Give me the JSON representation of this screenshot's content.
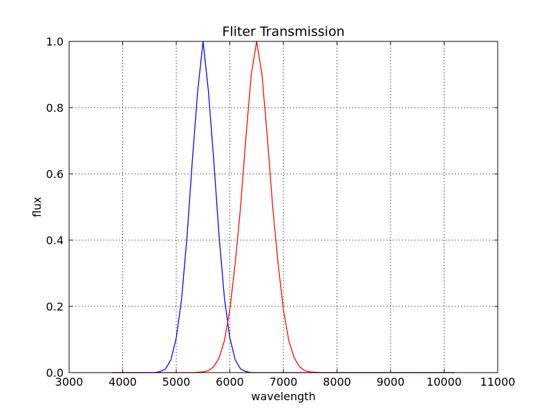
{
  "chart_data": {
    "type": "line",
    "title": "Fliter Transmission",
    "xlabel": "wavelength",
    "ylabel": "flux",
    "xlim": [
      3000,
      11000
    ],
    "ylim": [
      0.0,
      1.0
    ],
    "x_ticks": [
      "3000",
      "4000",
      "5000",
      "6000",
      "7000",
      "8000",
      "9000",
      "10000",
      "11000"
    ],
    "y_ticks": [
      "0.0",
      "0.2",
      "0.4",
      "0.6",
      "0.8",
      "1.0"
    ],
    "grid": true,
    "legend": "none",
    "series": [
      {
        "color": "#0000ff",
        "x": [
          3800,
          4600,
          4700,
          4800,
          4900,
          5000,
          5100,
          5200,
          5300,
          5400,
          5500,
          5600,
          5700,
          5800,
          5900,
          6000,
          6100,
          6200,
          6300,
          6400,
          10200
        ],
        "y": [
          0.0,
          0.0,
          0.003,
          0.011,
          0.039,
          0.105,
          0.223,
          0.41,
          0.64,
          0.85,
          1.0,
          0.85,
          0.64,
          0.41,
          0.223,
          0.105,
          0.039,
          0.011,
          0.003,
          0.0,
          0.0
        ]
      },
      {
        "color": "#ff0000",
        "x": [
          3800,
          5300,
          5500,
          5600,
          5700,
          5800,
          5900,
          6000,
          6100,
          6200,
          6300,
          6400,
          6500,
          6600,
          6700,
          6800,
          6900,
          7000,
          7100,
          7200,
          7300,
          7400,
          7500,
          7700,
          10200
        ],
        "y": [
          0.0,
          0.0,
          0.002,
          0.006,
          0.018,
          0.045,
          0.097,
          0.19,
          0.33,
          0.5,
          0.71,
          0.9,
          1.0,
          0.9,
          0.71,
          0.5,
          0.33,
          0.19,
          0.097,
          0.045,
          0.018,
          0.006,
          0.002,
          0.0,
          0.0
        ]
      }
    ]
  }
}
